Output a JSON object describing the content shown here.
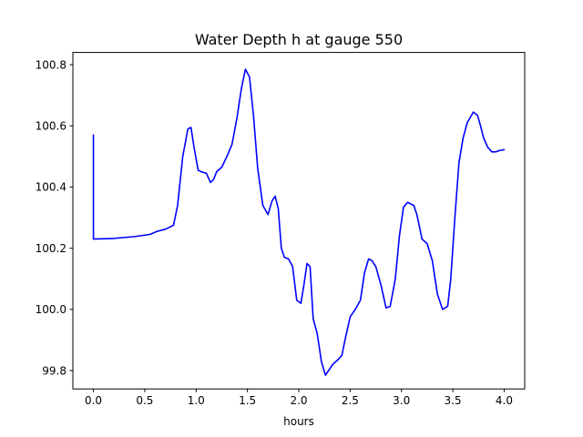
{
  "chart_data": {
    "type": "line",
    "title": "Water Depth h at gauge 550",
    "xlabel": "hours",
    "ylabel": "",
    "xlim": [
      -0.2,
      4.2
    ],
    "ylim": [
      99.74,
      100.84
    ],
    "xticks": [
      {
        "value": 0.0,
        "label": "0.0"
      },
      {
        "value": 0.5,
        "label": "0.5"
      },
      {
        "value": 1.0,
        "label": "1.0"
      },
      {
        "value": 1.5,
        "label": "1.5"
      },
      {
        "value": 2.0,
        "label": "2.0"
      },
      {
        "value": 2.5,
        "label": "2.5"
      },
      {
        "value": 3.0,
        "label": "3.0"
      },
      {
        "value": 3.5,
        "label": "3.5"
      },
      {
        "value": 4.0,
        "label": "4.0"
      }
    ],
    "yticks": [
      {
        "value": 99.8,
        "label": "99.8"
      },
      {
        "value": 100.0,
        "label": "100.0"
      },
      {
        "value": 100.2,
        "label": "100.2"
      },
      {
        "value": 100.4,
        "label": "100.4"
      },
      {
        "value": 100.6,
        "label": "100.6"
      },
      {
        "value": 100.8,
        "label": "100.8"
      }
    ],
    "grid": false,
    "legend": "none",
    "series": [
      {
        "color": "#0000ff",
        "x": [
          0.0,
          0.0,
          0.2,
          0.4,
          0.55,
          0.62,
          0.7,
          0.78,
          0.82,
          0.87,
          0.92,
          0.95,
          0.98,
          1.02,
          1.05,
          1.1,
          1.14,
          1.17,
          1.2,
          1.25,
          1.3,
          1.35,
          1.4,
          1.44,
          1.48,
          1.52,
          1.56,
          1.6,
          1.65,
          1.7,
          1.74,
          1.77,
          1.8,
          1.83,
          1.86,
          1.9,
          1.94,
          1.98,
          2.02,
          2.05,
          2.08,
          2.11,
          2.14,
          2.18,
          2.22,
          2.26,
          2.29,
          2.33,
          2.38,
          2.42,
          2.45,
          2.5,
          2.55,
          2.6,
          2.64,
          2.68,
          2.71,
          2.75,
          2.8,
          2.85,
          2.89,
          2.94,
          2.98,
          3.02,
          3.06,
          3.09,
          3.12,
          3.15,
          3.2,
          3.25,
          3.3,
          3.35,
          3.4,
          3.45,
          3.48,
          3.52,
          3.56,
          3.6,
          3.64,
          3.7,
          3.74,
          3.77,
          3.8,
          3.84,
          3.88,
          3.92,
          3.96,
          4.0
        ],
        "values": [
          100.57,
          100.23,
          100.232,
          100.238,
          100.245,
          100.255,
          100.262,
          100.275,
          100.34,
          100.5,
          100.59,
          100.595,
          100.53,
          100.455,
          100.45,
          100.445,
          100.415,
          100.425,
          100.45,
          100.465,
          100.5,
          100.54,
          100.63,
          100.72,
          100.785,
          100.76,
          100.63,
          100.46,
          100.34,
          100.31,
          100.355,
          100.37,
          100.33,
          100.2,
          100.17,
          100.165,
          100.14,
          100.03,
          100.02,
          100.08,
          100.15,
          100.14,
          99.97,
          99.92,
          99.83,
          99.785,
          99.8,
          99.82,
          99.835,
          99.85,
          99.9,
          99.975,
          100.0,
          100.03,
          100.12,
          100.165,
          100.16,
          100.14,
          100.08,
          100.005,
          100.01,
          100.1,
          100.24,
          100.335,
          100.35,
          100.345,
          100.34,
          100.31,
          100.23,
          100.215,
          100.16,
          100.05,
          100.0,
          100.01,
          100.1,
          100.3,
          100.48,
          100.56,
          100.61,
          100.645,
          100.635,
          100.6,
          100.56,
          100.53,
          100.515,
          100.515,
          100.52,
          100.522
        ]
      }
    ]
  }
}
